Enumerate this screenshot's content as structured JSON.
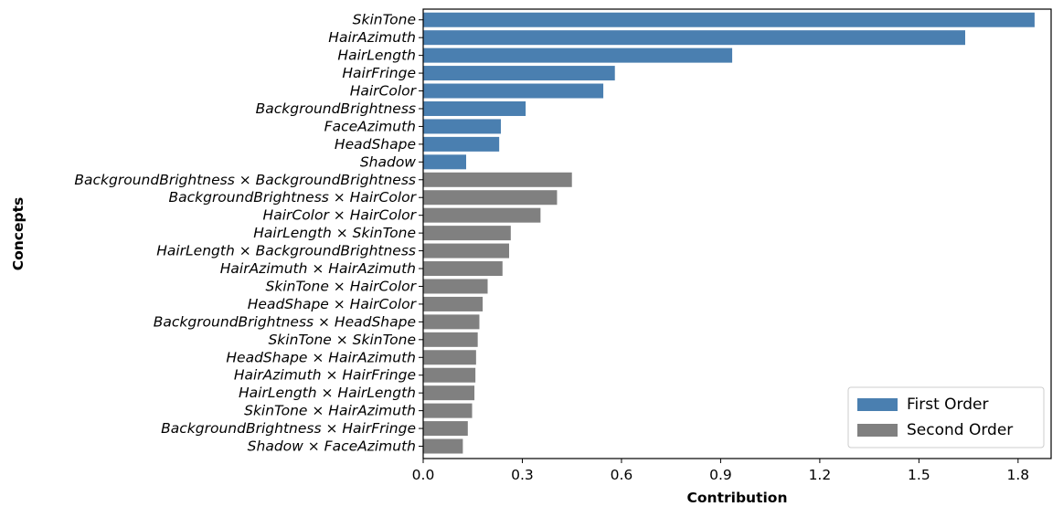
{
  "chart_data": {
    "type": "bar",
    "orientation": "horizontal",
    "xlabel": "Contribution",
    "ylabel": "Concepts",
    "xlim": [
      0,
      1.9
    ],
    "xticks": [
      "0.0",
      "0.3",
      "0.6",
      "0.9",
      "1.2",
      "1.5",
      "1.8"
    ],
    "legend_position": "bottom-right",
    "grid": false,
    "series": [
      {
        "name": "First Order",
        "color": "#4a7fb0"
      },
      {
        "name": "Second Order",
        "color": "#808080"
      }
    ],
    "bars": [
      {
        "label": "SkinTone",
        "value": 1.85,
        "series": 0
      },
      {
        "label": "HairAzimuth",
        "value": 1.64,
        "series": 0
      },
      {
        "label": "HairLength",
        "value": 0.935,
        "series": 0
      },
      {
        "label": "HairFringe",
        "value": 0.58,
        "series": 0
      },
      {
        "label": "HairColor",
        "value": 0.545,
        "series": 0
      },
      {
        "label": "BackgroundBrightness",
        "value": 0.31,
        "series": 0
      },
      {
        "label": "FaceAzimuth",
        "value": 0.235,
        "series": 0
      },
      {
        "label": "HeadShape",
        "value": 0.23,
        "series": 0
      },
      {
        "label": "Shadow",
        "value": 0.13,
        "series": 0
      },
      {
        "label": "BackgroundBrightness × BackgroundBrightness",
        "value": 0.45,
        "series": 1
      },
      {
        "label": "BackgroundBrightness × HairColor",
        "value": 0.405,
        "series": 1
      },
      {
        "label": "HairColor × HairColor",
        "value": 0.355,
        "series": 1
      },
      {
        "label": "HairLength × SkinTone",
        "value": 0.265,
        "series": 1
      },
      {
        "label": "HairLength × BackgroundBrightness",
        "value": 0.26,
        "series": 1
      },
      {
        "label": "HairAzimuth × HairAzimuth",
        "value": 0.24,
        "series": 1
      },
      {
        "label": "SkinTone × HairColor",
        "value": 0.195,
        "series": 1
      },
      {
        "label": "HeadShape × HairColor",
        "value": 0.18,
        "series": 1
      },
      {
        "label": "BackgroundBrightness × HeadShape",
        "value": 0.17,
        "series": 1
      },
      {
        "label": "SkinTone × SkinTone",
        "value": 0.165,
        "series": 1
      },
      {
        "label": "HeadShape × HairAzimuth",
        "value": 0.16,
        "series": 1
      },
      {
        "label": "HairAzimuth × HairFringe",
        "value": 0.158,
        "series": 1
      },
      {
        "label": "HairLength × HairLength",
        "value": 0.155,
        "series": 1
      },
      {
        "label": "SkinTone × HairAzimuth",
        "value": 0.148,
        "series": 1
      },
      {
        "label": "BackgroundBrightness × HairFringe",
        "value": 0.135,
        "series": 1
      },
      {
        "label": "Shadow × FaceAzimuth",
        "value": 0.12,
        "series": 1
      }
    ]
  }
}
